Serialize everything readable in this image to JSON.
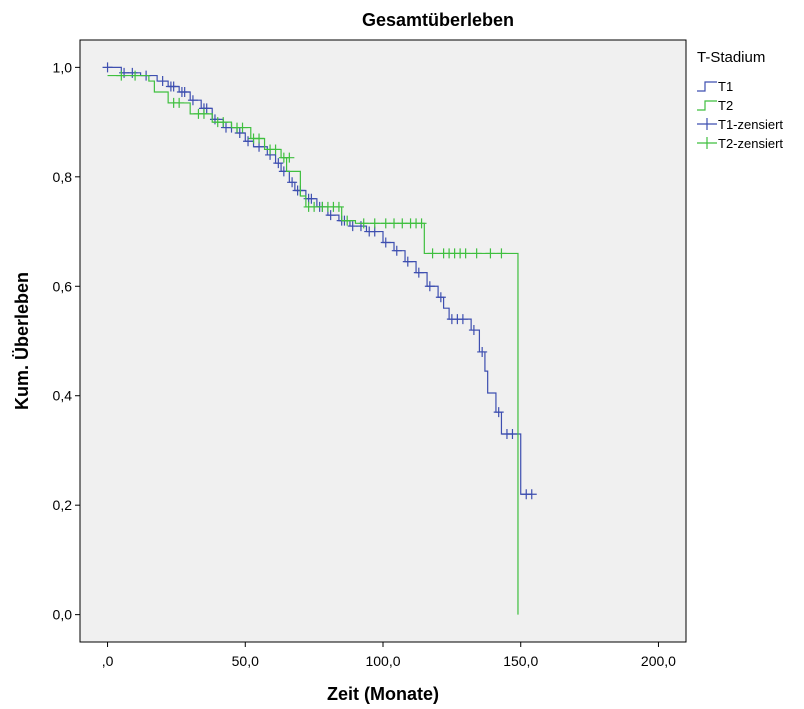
{
  "chart_data": {
    "type": "line",
    "title": "Gesamtüberleben",
    "xlabel": "Zeit (Monate)",
    "ylabel": "Kum. Überleben",
    "xlim": [
      -10,
      210
    ],
    "ylim": [
      -0.05,
      1.05
    ],
    "xticks": [
      0,
      50,
      100,
      150,
      200
    ],
    "xtick_labels": [
      ",0",
      "50,0",
      "100,0",
      "150,0",
      "200,0"
    ],
    "yticks": [
      0,
      0.2,
      0.4,
      0.6,
      0.8,
      1.0
    ],
    "ytick_labels": [
      "0,0",
      "0,2",
      "0,4",
      "0,6",
      "0,8",
      "1,0"
    ],
    "grid": false,
    "background": "#f0f0f0",
    "legend": {
      "title": "T-Stadium",
      "position": "right",
      "entries": [
        {
          "label": "T1",
          "kind": "line",
          "series": 0
        },
        {
          "label": "T2",
          "kind": "line",
          "series": 1
        },
        {
          "label": "T1-zensiert",
          "kind": "censor",
          "series": 0
        },
        {
          "label": "T2-zensiert",
          "kind": "censor",
          "series": 1
        }
      ]
    },
    "series": [
      {
        "name": "T1",
        "color": "#3e4fb0",
        "steps": [
          [
            0,
            1.0
          ],
          [
            5,
            0.99
          ],
          [
            12,
            0.985
          ],
          [
            18,
            0.975
          ],
          [
            22,
            0.965
          ],
          [
            26,
            0.955
          ],
          [
            30,
            0.94
          ],
          [
            34,
            0.925
          ],
          [
            38,
            0.905
          ],
          [
            42,
            0.89
          ],
          [
            47,
            0.88
          ],
          [
            50,
            0.865
          ],
          [
            53,
            0.855
          ],
          [
            58,
            0.84
          ],
          [
            61,
            0.825
          ],
          [
            63,
            0.81
          ],
          [
            66,
            0.79
          ],
          [
            68,
            0.775
          ],
          [
            72,
            0.76
          ],
          [
            76,
            0.745
          ],
          [
            80,
            0.73
          ],
          [
            84,
            0.72
          ],
          [
            88,
            0.71
          ],
          [
            94,
            0.7
          ],
          [
            100,
            0.68
          ],
          [
            104,
            0.665
          ],
          [
            108,
            0.645
          ],
          [
            112,
            0.625
          ],
          [
            116,
            0.6
          ],
          [
            120,
            0.58
          ],
          [
            122,
            0.56
          ],
          [
            124,
            0.54
          ],
          [
            132,
            0.52
          ],
          [
            135,
            0.48
          ],
          [
            137,
            0.445
          ],
          [
            138,
            0.405
          ],
          [
            141,
            0.37
          ],
          [
            143,
            0.33
          ],
          [
            150,
            0.22
          ],
          [
            154,
            0.22
          ]
        ],
        "censored": [
          [
            0,
            1.0
          ],
          [
            6,
            0.99
          ],
          [
            9,
            0.99
          ],
          [
            14,
            0.985
          ],
          [
            20,
            0.975
          ],
          [
            23,
            0.965
          ],
          [
            24,
            0.965
          ],
          [
            27,
            0.955
          ],
          [
            28,
            0.955
          ],
          [
            31,
            0.94
          ],
          [
            35,
            0.925
          ],
          [
            36,
            0.925
          ],
          [
            39,
            0.905
          ],
          [
            43,
            0.89
          ],
          [
            45,
            0.89
          ],
          [
            48,
            0.88
          ],
          [
            51,
            0.865
          ],
          [
            55,
            0.855
          ],
          [
            59,
            0.84
          ],
          [
            62,
            0.825
          ],
          [
            64,
            0.81
          ],
          [
            67,
            0.79
          ],
          [
            69,
            0.775
          ],
          [
            70,
            0.775
          ],
          [
            73,
            0.76
          ],
          [
            74,
            0.76
          ],
          [
            77,
            0.745
          ],
          [
            78,
            0.745
          ],
          [
            81,
            0.73
          ],
          [
            85,
            0.72
          ],
          [
            86,
            0.72
          ],
          [
            89,
            0.71
          ],
          [
            92,
            0.71
          ],
          [
            95,
            0.7
          ],
          [
            97,
            0.7
          ],
          [
            101,
            0.68
          ],
          [
            105,
            0.665
          ],
          [
            109,
            0.645
          ],
          [
            113,
            0.625
          ],
          [
            117,
            0.6
          ],
          [
            121,
            0.58
          ],
          [
            125,
            0.54
          ],
          [
            127,
            0.54
          ],
          [
            129,
            0.54
          ],
          [
            133,
            0.52
          ],
          [
            136,
            0.48
          ],
          [
            142,
            0.37
          ],
          [
            145,
            0.33
          ],
          [
            147,
            0.33
          ],
          [
            152,
            0.22
          ],
          [
            154,
            0.22
          ]
        ]
      },
      {
        "name": "T2",
        "color": "#3fbf3f",
        "steps": [
          [
            0,
            0.985
          ],
          [
            15,
            0.975
          ],
          [
            17,
            0.955
          ],
          [
            22,
            0.935
          ],
          [
            30,
            0.915
          ],
          [
            38,
            0.9
          ],
          [
            45,
            0.89
          ],
          [
            52,
            0.87
          ],
          [
            57,
            0.85
          ],
          [
            63,
            0.835
          ],
          [
            65,
            0.81
          ],
          [
            70,
            0.765
          ],
          [
            72,
            0.745
          ],
          [
            85,
            0.72
          ],
          [
            90,
            0.715
          ],
          [
            115,
            0.66
          ],
          [
            149,
            0.0
          ]
        ],
        "censored": [
          [
            5,
            0.985
          ],
          [
            10,
            0.985
          ],
          [
            24,
            0.935
          ],
          [
            26,
            0.935
          ],
          [
            33,
            0.915
          ],
          [
            35,
            0.915
          ],
          [
            40,
            0.9
          ],
          [
            42,
            0.9
          ],
          [
            47,
            0.89
          ],
          [
            49,
            0.89
          ],
          [
            53,
            0.87
          ],
          [
            55,
            0.87
          ],
          [
            59,
            0.85
          ],
          [
            61,
            0.85
          ],
          [
            64,
            0.835
          ],
          [
            66,
            0.835
          ],
          [
            73,
            0.745
          ],
          [
            75,
            0.745
          ],
          [
            78,
            0.745
          ],
          [
            80,
            0.745
          ],
          [
            82,
            0.745
          ],
          [
            84,
            0.745
          ],
          [
            87,
            0.72
          ],
          [
            93,
            0.715
          ],
          [
            97,
            0.715
          ],
          [
            101,
            0.715
          ],
          [
            104,
            0.715
          ],
          [
            107,
            0.715
          ],
          [
            110,
            0.715
          ],
          [
            112,
            0.715
          ],
          [
            114,
            0.715
          ],
          [
            118,
            0.66
          ],
          [
            122,
            0.66
          ],
          [
            124,
            0.66
          ],
          [
            126,
            0.66
          ],
          [
            128,
            0.66
          ],
          [
            130,
            0.66
          ],
          [
            134,
            0.66
          ],
          [
            139,
            0.66
          ],
          [
            143,
            0.66
          ]
        ]
      }
    ]
  }
}
